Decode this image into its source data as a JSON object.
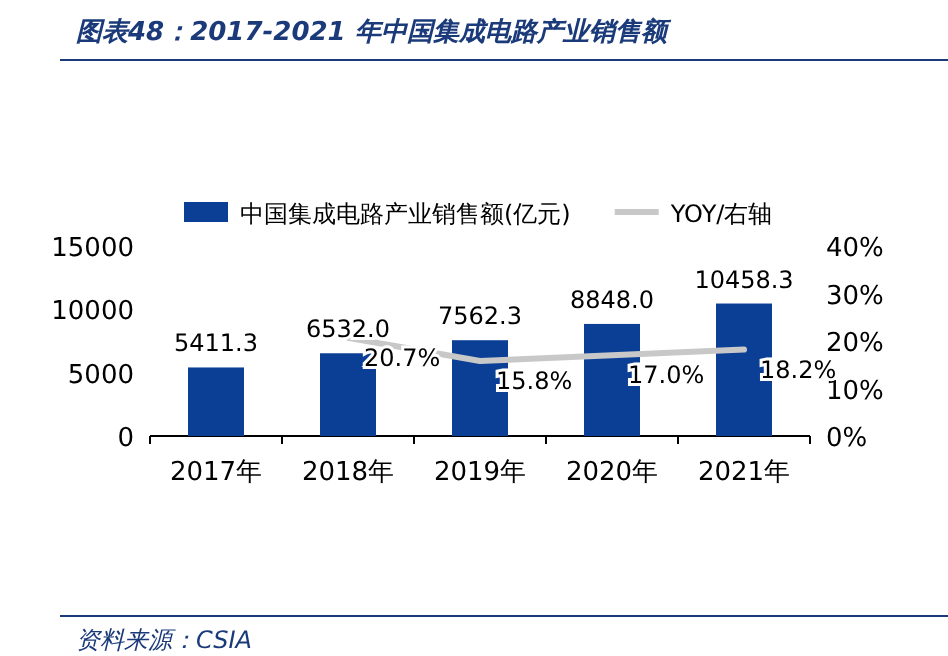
{
  "chart_data": {
    "type": "bar",
    "title": "图表48：2017-2021 年中国集成电路产业销售额",
    "categories": [
      "2017年",
      "2018年",
      "2019年",
      "2020年",
      "2021年"
    ],
    "series": [
      {
        "name": "中国集成电路产业销售额(亿元)",
        "color": "#0b3f96",
        "values": [
          5411.3,
          6532.0,
          7562.3,
          8848.0,
          10458.3
        ],
        "value_labels": [
          "5411.3",
          "6532.0",
          "7562.3",
          "8848.0",
          "10458.3"
        ]
      },
      {
        "name": "YOY/右轴",
        "type": "line",
        "axis": "y2",
        "color": "#c8c8c8",
        "values": [
          null,
          20.7,
          15.8,
          17.0,
          18.2
        ],
        "value_labels": [
          null,
          "20.7%",
          "15.8%",
          "17.0%",
          "18.2%"
        ]
      }
    ],
    "ylim": [
      0,
      15000
    ],
    "yticks": [
      0,
      5000,
      10000,
      15000
    ],
    "y2lim": [
      0,
      40
    ],
    "y2ticks": [
      {
        "value": 0,
        "label": "0%"
      },
      {
        "value": 10,
        "label": "10%"
      },
      {
        "value": 20,
        "label": "20%"
      },
      {
        "value": 30,
        "label": "30%"
      },
      {
        "value": 40,
        "label": "40%"
      }
    ],
    "legend": "top",
    "grid": false,
    "marker": "none",
    "line_style": "solid",
    "annotations": [
      "资料来源：CSIA"
    ]
  }
}
